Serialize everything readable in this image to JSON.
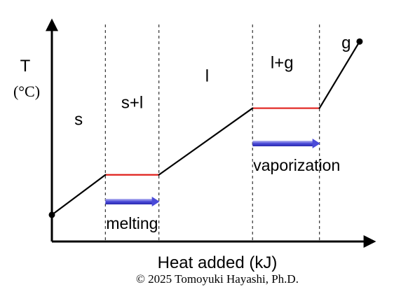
{
  "chart_data": {
    "type": "line",
    "title": "",
    "xlabel": "Heat added (kJ)",
    "ylabel": "T",
    "ylabel_unit": "(°C)",
    "grid": false,
    "legend": "none",
    "phase_labels": [
      {
        "label": "s",
        "x": 1.0,
        "y": 1.75
      },
      {
        "label": "s+l",
        "x": 3.0,
        "y": 2.0
      },
      {
        "label": "l",
        "x": 5.8,
        "y": 2.4
      },
      {
        "label": "l+g",
        "x": 8.6,
        "y": 2.6
      },
      {
        "label": "g",
        "x": 11.0,
        "y": 2.9
      }
    ],
    "boundaries_x": [
      2.0,
      4.0,
      7.5,
      10.0
    ],
    "heating_curve": [
      {
        "x": 0.0,
        "y": 0.4
      },
      {
        "x": 2.0,
        "y": 1.0
      },
      {
        "x": 4.0,
        "y": 1.0
      },
      {
        "x": 7.5,
        "y": 2.0
      },
      {
        "x": 10.0,
        "y": 2.0
      },
      {
        "x": 11.5,
        "y": 3.0
      }
    ],
    "phase_change_segments": [
      {
        "x": [
          2.0,
          4.0
        ],
        "y": 1.0
      },
      {
        "x": [
          7.5,
          10.0
        ],
        "y": 2.0
      }
    ],
    "arrows": [
      {
        "label": "melting",
        "x_start": 2.0,
        "x_end": 4.0
      },
      {
        "label": "vaporization",
        "x_start": 7.5,
        "x_end": 10.0
      }
    ],
    "xlim": [
      0,
      12
    ],
    "ylim": [
      0,
      3.35
    ],
    "colors": {
      "curve": "#000000",
      "phase_change": "#e0201c",
      "arrow": "#4a4ad8",
      "boundary": "#333333"
    }
  },
  "copyright": "© 2025 Tomoyuki Hayashi, Ph.D."
}
